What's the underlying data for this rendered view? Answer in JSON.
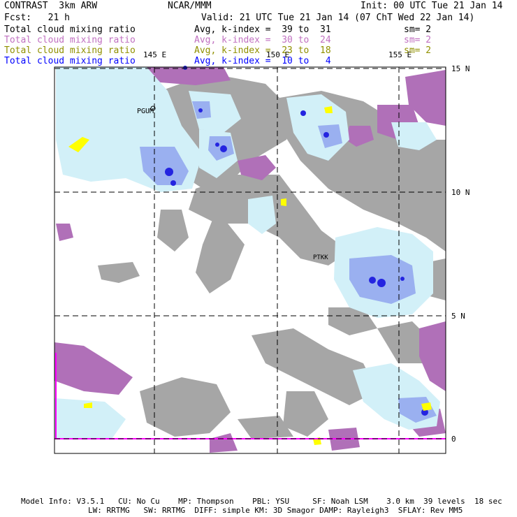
{
  "header": {
    "left_title": "CONTRAST  3km ARW",
    "center_title": "NCAR/MMM",
    "init": "Init: 00 UTC Tue 21 Jan 14",
    "fcst": "Fcst:   21 h",
    "valid": "Valid: 21 UTC Tue 21 Jan 14 (07 ChT Wed 22 Jan 14)"
  },
  "fields": [
    {
      "name": "Total cloud mixing ratio",
      "avg": "Avg, k-index =  39 to  31",
      "sm": "sm= 2",
      "color": "#000000"
    },
    {
      "name": "Total cloud mixing ratio",
      "avg": "Avg, k-index =  30 to  24",
      "sm": "sm= 2",
      "color": "#c070c0"
    },
    {
      "name": "Total cloud mixing ratio",
      "avg": "Avg, k-index =  23 to  18",
      "sm": "sm= 2",
      "color": "#909000"
    },
    {
      "name": "Total cloud mixing ratio",
      "avg": "Avg, k-index =  10 to   4",
      "sm": "",
      "color": "#0000ff"
    }
  ],
  "map": {
    "lon_labels": [
      "145 E",
      "150 E",
      "155 E"
    ],
    "lat_labels": [
      "15 N",
      "10 N",
      "5 N",
      "0"
    ],
    "stations": [
      "PGUM",
      "PTKK"
    ],
    "colors": {
      "land": "#a0a0a0",
      "high_cloud": "#b070b8",
      "mid_cloud": "#ffff00",
      "low_cloud_light": "#d0f0f8",
      "low_cloud_mid": "#9ab0f0",
      "low_cloud_dark": "#2020e0",
      "boundary": "#ff00ff"
    }
  },
  "footer": {
    "line1": "Model Info: V3.5.1   CU: No Cu    MP: Thompson    PBL: YSU     SF: Noah LSM    3.0 km  39 levels  18 sec",
    "line2": "LW: RRTMG   SW: RRTMG  DIFF: simple KM: 3D Smagor DAMP: Rayleigh3  SFLAY: Rev MM5"
  }
}
